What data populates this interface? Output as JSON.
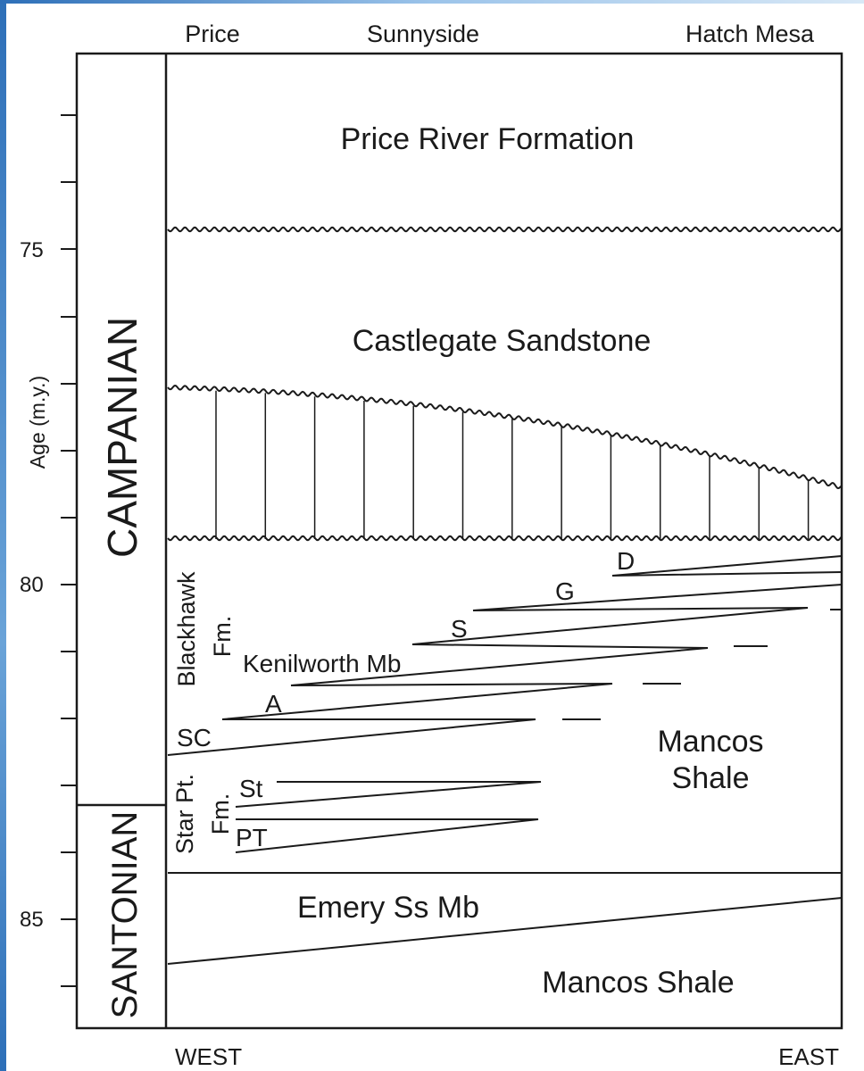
{
  "locations": {
    "west": "Price",
    "middle": "Sunnyside",
    "east": "Hatch Mesa"
  },
  "directions": {
    "west": "WEST",
    "east": "EAST"
  },
  "axis": {
    "label": "Age (m.y.)",
    "ticks": [
      {
        "label": "75",
        "value": 75
      },
      {
        "label": "80",
        "value": 80
      },
      {
        "label": "85",
        "value": 85
      }
    ]
  },
  "stages": {
    "campanian": "CAMPANIAN",
    "santonian": "SANTONIAN"
  },
  "units": {
    "price_river": "Price River Formation",
    "castlegate": "Castlegate Sandstone",
    "blackhawk_1": "Blackhawk",
    "blackhawk_2": "Fm.",
    "kenilworth": "Kenilworth Mb",
    "star_point_1": "Star Pt.",
    "star_point_2": "Fm.",
    "mancos_upper_1": "Mancos",
    "mancos_upper_2": "Shale",
    "emery": "Emery Ss Mb",
    "mancos_lower": "Mancos Shale"
  },
  "tongues": {
    "D": "D",
    "G": "G",
    "S": "S",
    "A": "A",
    "SC": "SC",
    "St": "St",
    "PT": "PT"
  }
}
